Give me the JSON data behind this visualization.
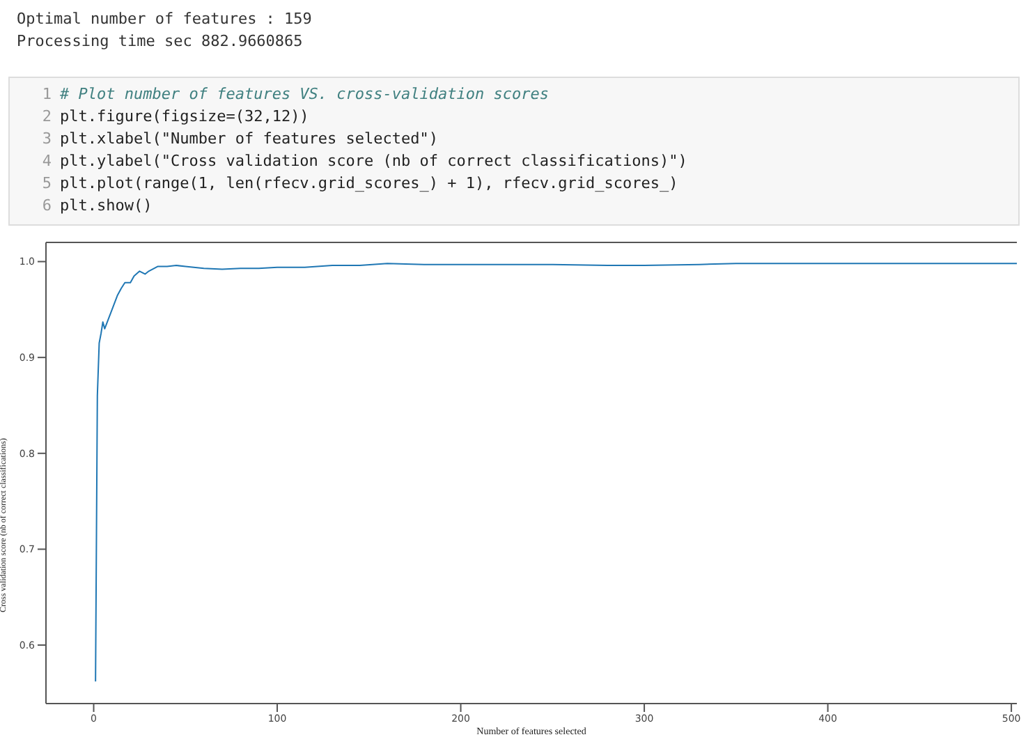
{
  "chart_data": {
    "type": "line",
    "xlabel": "Number of features selected",
    "ylabel": "Cross validation score (nb of correct classifications)",
    "annotations": [
      "Optimal number of features : 159",
      "Processing time sec  882.9660865",
      "1",
      "# Plot number of features VS. cross-validation scores",
      "2",
      "plt.figure(figsize=(32,12))",
      "3",
      "plt.xlabel(\"Number of features selected\")",
      "4",
      "plt.ylabel(\"Cross validation score (nb of correct classifications)\")",
      "5",
      "plt.plot(range(1, len(rfecv.grid_scores_) + 1), rfecv.grid_scores_)",
      "6",
      "plt.show()"
    ],
    "x": [
      1,
      2,
      3,
      4,
      5,
      6,
      8,
      10,
      13,
      15,
      17,
      20,
      22,
      25,
      28,
      30,
      35,
      40,
      45,
      50,
      60,
      70,
      80,
      90,
      100,
      115,
      130,
      145,
      160,
      180,
      200,
      230,
      250,
      280,
      300,
      330,
      350,
      380,
      400,
      450,
      503
    ],
    "series": [
      {
        "color": "#1f77b4",
        "values": [
          0.562,
          0.86,
          0.915,
          0.925,
          0.937,
          0.93,
          0.94,
          0.95,
          0.965,
          0.972,
          0.978,
          0.978,
          0.985,
          0.99,
          0.987,
          0.99,
          0.995,
          0.995,
          0.996,
          0.995,
          0.993,
          0.992,
          0.993,
          0.993,
          0.994,
          0.994,
          0.996,
          0.996,
          0.998,
          0.997,
          0.997,
          0.997,
          0.997,
          0.996,
          0.996,
          0.997,
          0.998,
          0.998,
          0.998,
          0.998,
          0.998
        ]
      }
    ],
    "xlim": [
      -26,
      503
    ],
    "xticks": [
      0,
      100,
      200,
      300,
      400,
      500
    ],
    "ylim": [
      0.539,
      1.02
    ],
    "yticks": [
      {
        "value": 0.6,
        "label": "0.6"
      },
      {
        "value": 0.7,
        "label": "0.7"
      },
      {
        "value": 0.8,
        "label": "0.8"
      },
      {
        "value": 0.9,
        "label": "0.9"
      },
      {
        "value": 1,
        "label": "1.0"
      }
    ],
    "grid": false,
    "legend": false,
    "marker": "none",
    "line_style": "solid"
  }
}
